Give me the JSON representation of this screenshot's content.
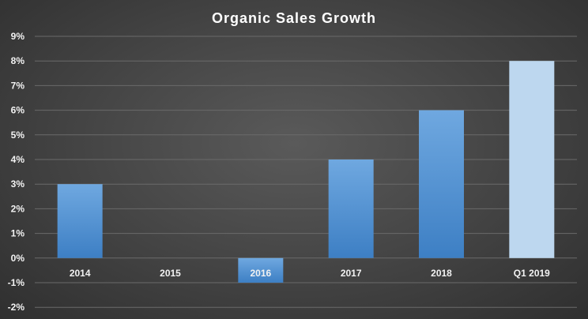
{
  "chart_data": {
    "type": "bar",
    "title": "Organic Sales Growth",
    "xlabel": "",
    "ylabel": "",
    "categories": [
      "2014",
      "2015",
      "2016",
      "2017",
      "2018",
      "Q1 2019"
    ],
    "values": [
      3,
      0,
      -1,
      4,
      6,
      8
    ],
    "y_tick_labels": [
      "9%",
      "8%",
      "7%",
      "6%",
      "5%",
      "4%",
      "3%",
      "2%",
      "1%",
      "0%",
      "-1%",
      "-2%"
    ],
    "ylim": [
      -2,
      9
    ],
    "grid": true,
    "legend": "none",
    "colors": {
      "bar_gradient_top": "#6fa8e0",
      "bar_gradient_bottom": "#3d7fc4",
      "highlight_bar": "#bdd7ef",
      "gridline": "#6a6a6a",
      "text": "#f2f2f2"
    },
    "highlight_category": "Q1 2019"
  }
}
